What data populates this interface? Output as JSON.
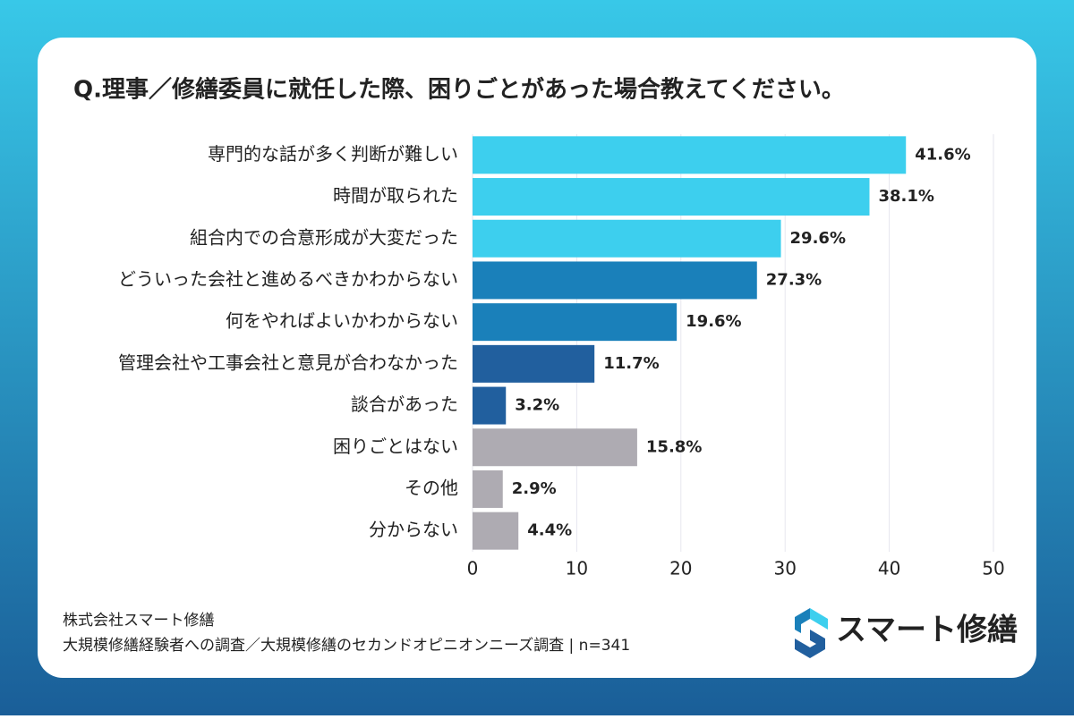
{
  "chart_data": {
    "type": "barh",
    "title": "Q.理事／修繕委員に就任した際、困りごとがあった場合教えてください。",
    "categories": [
      "専門的な話が多く判断が難しい",
      "時間が取られた",
      "組合内での合意形成が大変だった",
      "どういった会社と進めるべきかわからない",
      "何をやればよいかわからない",
      "管理会社や工事会社と意見が合わなかった",
      "談合があった",
      "困りごとはない",
      "その他",
      "分からない"
    ],
    "values": [
      41.6,
      38.1,
      29.6,
      27.3,
      19.6,
      11.7,
      3.2,
      15.8,
      2.9,
      4.4
    ],
    "value_labels": [
      "41.6%",
      "38.1%",
      "29.6%",
      "27.3%",
      "19.6%",
      "11.7%",
      "3.2%",
      "15.8%",
      "2.9%",
      "4.4%"
    ],
    "colors": [
      "#3dcfee",
      "#3dcfee",
      "#3dcfee",
      "#1a80ba",
      "#1a80ba",
      "#215f9e",
      "#215f9e",
      "#aeabb2",
      "#aeabb2",
      "#aeabb2"
    ],
    "xlim": [
      0,
      50
    ],
    "xticks": [
      0,
      10,
      20,
      30,
      40,
      50
    ],
    "grid": true,
    "source": [
      "株式会社スマート修繕",
      "大規模修繕経験者への調査／大規模修繕のセカンドオピニオンニーズ調査 | n=341"
    ],
    "logo": "スマート修繕"
  }
}
